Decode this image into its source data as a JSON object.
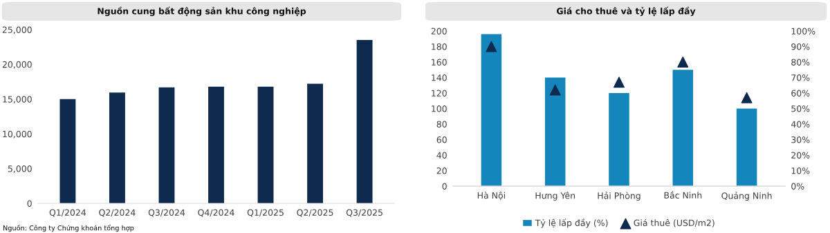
{
  "chart_data": [
    {
      "type": "bar",
      "title": "Nguồn cung bất động sản khu công nghiệp",
      "categories": [
        "Q1/2024",
        "Q2/2024",
        "Q3/2024",
        "Q4/2024",
        "Q1/2025",
        "Q2/2025",
        "Q3/2025"
      ],
      "series": [
        {
          "color": "#0e2a4f",
          "values": [
            15000,
            15950,
            16700,
            16800,
            16800,
            17200,
            23500
          ]
        }
      ],
      "ylim": [
        0,
        25000
      ],
      "yticks": [
        {
          "value": 0,
          "label": "0"
        },
        {
          "value": 5000,
          "label": "5,000"
        },
        {
          "value": 10000,
          "label": "10,000"
        },
        {
          "value": 15000,
          "label": "15,000"
        },
        {
          "value": 20000,
          "label": "20,000"
        },
        {
          "value": 25000,
          "label": "25,000"
        }
      ],
      "grid": false,
      "legend": false,
      "annotations": [
        "Nguồn: Công ty Chứng khoán tổng hợp"
      ]
    },
    {
      "type": "bar",
      "title": "Giá cho thuê và tỷ lệ lấp đầy",
      "categories": [
        "Hà Nội",
        "Hưng Yên",
        "Hải Phòng",
        "Bắc Ninh",
        "Quảng Ninh"
      ],
      "series": [
        {
          "name": "Tỷ lệ lấp đầy (%)",
          "type": "bar",
          "axis": "y2",
          "color": "#1486bb",
          "values": [
            98,
            70,
            60,
            75,
            50
          ]
        },
        {
          "name": "Giá thuê (USD/m2)",
          "type": "scatter",
          "axis": "y",
          "marker": "triangle",
          "color": "#0e2a4f",
          "values": [
            180,
            124,
            134,
            160,
            114
          ]
        }
      ],
      "ylim": [
        0,
        200
      ],
      "yticks": [
        0,
        20,
        40,
        60,
        80,
        100,
        120,
        140,
        160,
        180,
        200
      ],
      "y2lim": [
        0,
        100
      ],
      "y2ticks": [
        {
          "value": 0,
          "label": "0%"
        },
        {
          "value": 10,
          "label": "10%"
        },
        {
          "value": 20,
          "label": "20%"
        },
        {
          "value": 30,
          "label": "30%"
        },
        {
          "value": 40,
          "label": "40%"
        },
        {
          "value": 50,
          "label": "50%"
        },
        {
          "value": 60,
          "label": "60%"
        },
        {
          "value": 70,
          "label": "70%"
        },
        {
          "value": 80,
          "label": "80%"
        },
        {
          "value": 90,
          "label": "90%"
        },
        {
          "value": 100,
          "label": "100%"
        }
      ],
      "grid": false,
      "legend": "bottom"
    }
  ]
}
